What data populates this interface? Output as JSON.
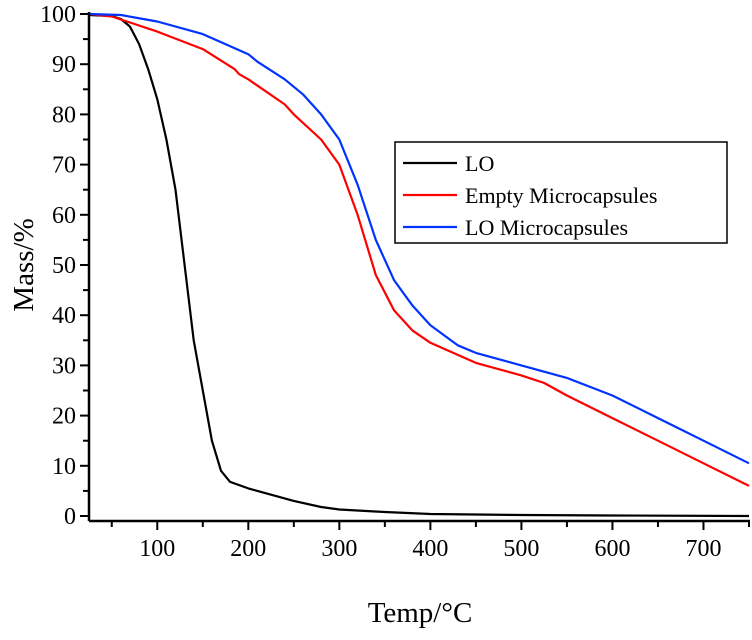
{
  "chart_data": {
    "type": "line",
    "title": "",
    "xlabel": "Temp/°C",
    "ylabel": "Mass/%",
    "xlim": [
      25,
      750
    ],
    "ylim": [
      0,
      100
    ],
    "xticks": [
      100,
      200,
      300,
      400,
      500,
      600,
      700
    ],
    "yticks": [
      0,
      10,
      20,
      30,
      40,
      50,
      60,
      70,
      80,
      90,
      100
    ],
    "grid": false,
    "legend_position": "center-right",
    "series": [
      {
        "name": "LO",
        "color": "#000000",
        "x": [
          25,
          50,
          60,
          70,
          80,
          90,
          100,
          110,
          120,
          130,
          140,
          150,
          160,
          170,
          180,
          200,
          220,
          250,
          280,
          300,
          350,
          400,
          500,
          600,
          750
        ],
        "y": [
          99.8,
          99.6,
          99,
          97.5,
          94,
          89,
          83,
          75,
          65,
          50,
          35,
          25,
          15,
          9,
          6.8,
          5.5,
          4.5,
          3,
          1.8,
          1.3,
          0.8,
          0.4,
          0.2,
          0.1,
          0
        ]
      },
      {
        "name": "Empty Microcapsules",
        "color": "#ff0000",
        "x": [
          25,
          50,
          75,
          100,
          150,
          185,
          190,
          200,
          240,
          250,
          280,
          300,
          320,
          340,
          360,
          380,
          400,
          450,
          500,
          525,
          550,
          600,
          650,
          700,
          750
        ],
        "y": [
          100,
          99.5,
          98,
          96.5,
          93,
          89,
          88,
          87,
          82,
          80,
          75,
          70,
          60,
          48,
          41,
          37,
          34.5,
          30.5,
          28,
          26.5,
          24,
          19.5,
          15,
          10.5,
          6
        ]
      },
      {
        "name": "LO Microcapsules",
        "color": "#0033ff",
        "x": [
          25,
          60,
          100,
          150,
          200,
          210,
          240,
          260,
          280,
          300,
          320,
          340,
          360,
          380,
          400,
          430,
          450,
          500,
          550,
          600,
          650,
          700,
          750
        ],
        "y": [
          100,
          99.8,
          98.5,
          96,
          92,
          90.5,
          87,
          84,
          80,
          75,
          66,
          55,
          47,
          42,
          38,
          34,
          32.5,
          30,
          27.5,
          24,
          19.5,
          15,
          10.5
        ]
      }
    ]
  }
}
